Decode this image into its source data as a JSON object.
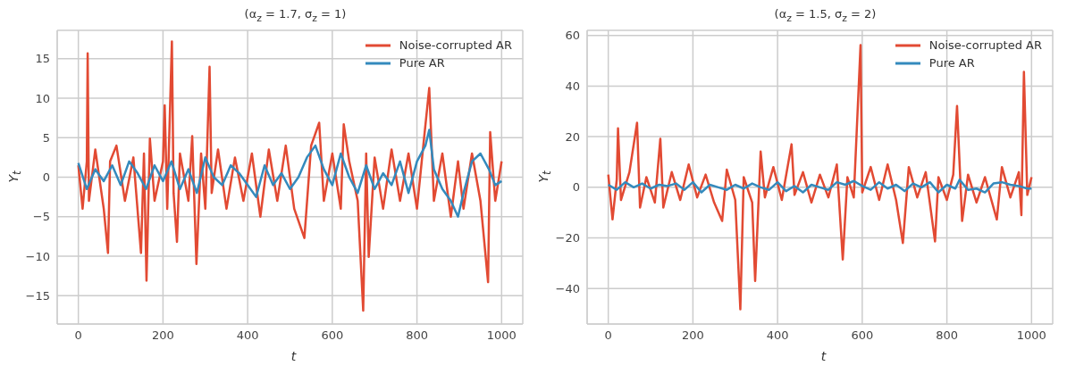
{
  "chart_data": [
    {
      "type": "line",
      "title": "(α$_{z}$ = 1.7, σ$_{z}$ = 1)",
      "xlabel": "t",
      "ylabel": "Y$_{t}$",
      "xlim": [
        -50,
        1050
      ],
      "ylim": [
        -18.6,
        18.6
      ],
      "xticks": [
        0,
        200,
        400,
        600,
        800,
        1000
      ],
      "yticks": [
        -15,
        -10,
        -5,
        0,
        5,
        10,
        15
      ],
      "grid": true,
      "legend": "top right",
      "line_style": "solid",
      "marker": "none",
      "series": [
        {
          "name": "Noise-corrupted AR",
          "color": "#e24a33",
          "x": [
            0,
            10,
            20,
            22,
            25,
            40,
            60,
            70,
            75,
            90,
            110,
            130,
            148,
            155,
            161,
            169,
            180,
            200,
            204,
            210,
            221,
            225,
            233,
            240,
            260,
            269,
            279,
            290,
            300,
            310,
            315,
            330,
            350,
            370,
            390,
            410,
            430,
            450,
            470,
            490,
            510,
            534,
            550,
            569,
            580,
            600,
            620,
            627,
            640,
            660,
            673,
            680,
            686,
            700,
            720,
            740,
            760,
            780,
            800,
            815,
            829,
            840,
            860,
            880,
            897,
            910,
            930,
            950,
            968,
            973,
            985,
            1000
          ],
          "values": [
            1.5,
            -4,
            2,
            15.7,
            -3,
            3.5,
            -4,
            -9.6,
            2,
            4,
            -3,
            2.5,
            -9.6,
            3,
            -13.1,
            4.9,
            -3,
            2,
            9.1,
            -4,
            17.2,
            -2,
            -8.2,
            3,
            -3,
            5.2,
            -11,
            3,
            -4,
            14,
            -2,
            3.5,
            -4,
            2.5,
            -3,
            3,
            -5,
            3.5,
            -3,
            4,
            -4,
            -7.7,
            4,
            6.9,
            -3,
            3,
            -4,
            6.7,
            2,
            -3,
            -16.9,
            3,
            -10.1,
            2.5,
            -4,
            3.5,
            -3,
            3,
            -4,
            4,
            11.3,
            -3,
            3,
            -5,
            2,
            -4,
            3,
            -3,
            -13.3,
            5.7,
            -3,
            2
          ]
        },
        {
          "name": "Pure AR",
          "color": "#348abd",
          "x": [
            0,
            20,
            40,
            60,
            80,
            100,
            120,
            140,
            160,
            180,
            200,
            220,
            240,
            260,
            280,
            300,
            320,
            340,
            360,
            380,
            400,
            420,
            440,
            460,
            480,
            500,
            520,
            540,
            560,
            580,
            600,
            620,
            640,
            660,
            680,
            700,
            720,
            740,
            760,
            780,
            800,
            820,
            829,
            840,
            860,
            880,
            897,
            910,
            930,
            950,
            970,
            985,
            1000
          ],
          "values": [
            1.8,
            -1.5,
            1,
            -0.5,
            1.5,
            -1,
            2,
            0.5,
            -1.5,
            1.5,
            -0.5,
            2,
            -1.5,
            1,
            -2,
            2.5,
            0,
            -1,
            1.5,
            0.5,
            -1,
            -2.5,
            1.5,
            -1,
            0.5,
            -1.5,
            0,
            2.5,
            4,
            1,
            -1,
            3,
            0,
            -2,
            1.5,
            -1.5,
            0.5,
            -1,
            2,
            -2,
            2,
            4,
            6,
            1,
            -1.5,
            -3,
            -5,
            -2,
            2,
            3,
            1,
            -1,
            -0.5
          ]
        }
      ]
    },
    {
      "type": "line",
      "title": "(α$_{z}$ = 1.5, σ$_{z}$ = 2)",
      "xlabel": "t",
      "ylabel": "Y$_{t}$",
      "xlim": [
        -50,
        1050
      ],
      "ylim": [
        -54,
        62
      ],
      "xticks": [
        0,
        200,
        400,
        600,
        800,
        1000
      ],
      "yticks": [
        -40,
        -20,
        0,
        20,
        40,
        60
      ],
      "grid": true,
      "legend": "top right",
      "line_style": "solid",
      "marker": "none",
      "series": [
        {
          "name": "Noise-corrupted AR",
          "color": "#e24a33",
          "x": [
            0,
            10,
            20,
            23,
            30,
            50,
            68,
            75,
            90,
            110,
            123,
            130,
            150,
            170,
            190,
            210,
            230,
            250,
            269,
            280,
            300,
            312,
            320,
            340,
            347,
            360,
            370,
            390,
            410,
            433,
            440,
            460,
            480,
            500,
            520,
            540,
            554,
            565,
            580,
            596,
            600,
            620,
            640,
            660,
            680,
            696,
            710,
            730,
            750,
            772,
            780,
            800,
            815,
            824,
            836,
            850,
            870,
            890,
            918,
            930,
            950,
            970,
            976,
            982,
            990,
            1000
          ],
          "values": [
            5,
            -12.7,
            3,
            23.3,
            -5,
            6,
            25.5,
            -8,
            4,
            -6,
            19.2,
            -8,
            6,
            -5,
            9,
            -4,
            5,
            -6,
            -13.3,
            7,
            -5,
            -48.2,
            4,
            -6,
            -37,
            14.1,
            -4,
            8,
            -5,
            17,
            -3,
            6,
            -6,
            5,
            -4,
            9,
            -28.5,
            4,
            -4,
            56.2,
            -2,
            8,
            -5,
            9,
            -5,
            -22,
            8,
            -4,
            6,
            -21.4,
            4,
            -5,
            5,
            32.1,
            -13.3,
            5,
            -6,
            4,
            -12.7,
            8,
            -4,
            6,
            -11,
            45.6,
            -3,
            4
          ]
        },
        {
          "name": "Pure AR",
          "color": "#348abd",
          "x": [
            0,
            20,
            40,
            60,
            80,
            100,
            120,
            140,
            160,
            180,
            200,
            220,
            240,
            260,
            280,
            300,
            320,
            340,
            360,
            380,
            400,
            420,
            440,
            460,
            480,
            500,
            520,
            540,
            560,
            580,
            600,
            620,
            640,
            660,
            680,
            700,
            720,
            740,
            760,
            780,
            800,
            820,
            830,
            850,
            870,
            890,
            910,
            930,
            950,
            970,
            990,
            1000
          ],
          "values": [
            1,
            -1,
            2,
            0,
            1.5,
            -0.5,
            1,
            0.5,
            1.5,
            -1,
            2,
            -2,
            1,
            0,
            -1,
            1,
            -0.5,
            1.5,
            0,
            -1,
            2,
            -1.5,
            0.5,
            -2,
            1,
            0,
            -1,
            2,
            1,
            2.5,
            0.5,
            -1,
            2,
            -0.5,
            1,
            -1.5,
            1.5,
            0,
            2,
            -2,
            1,
            -0.5,
            3,
            -1,
            -0.5,
            -2,
            1.5,
            2,
            1,
            0.5,
            -0.5,
            -0.5
          ]
        }
      ]
    }
  ]
}
